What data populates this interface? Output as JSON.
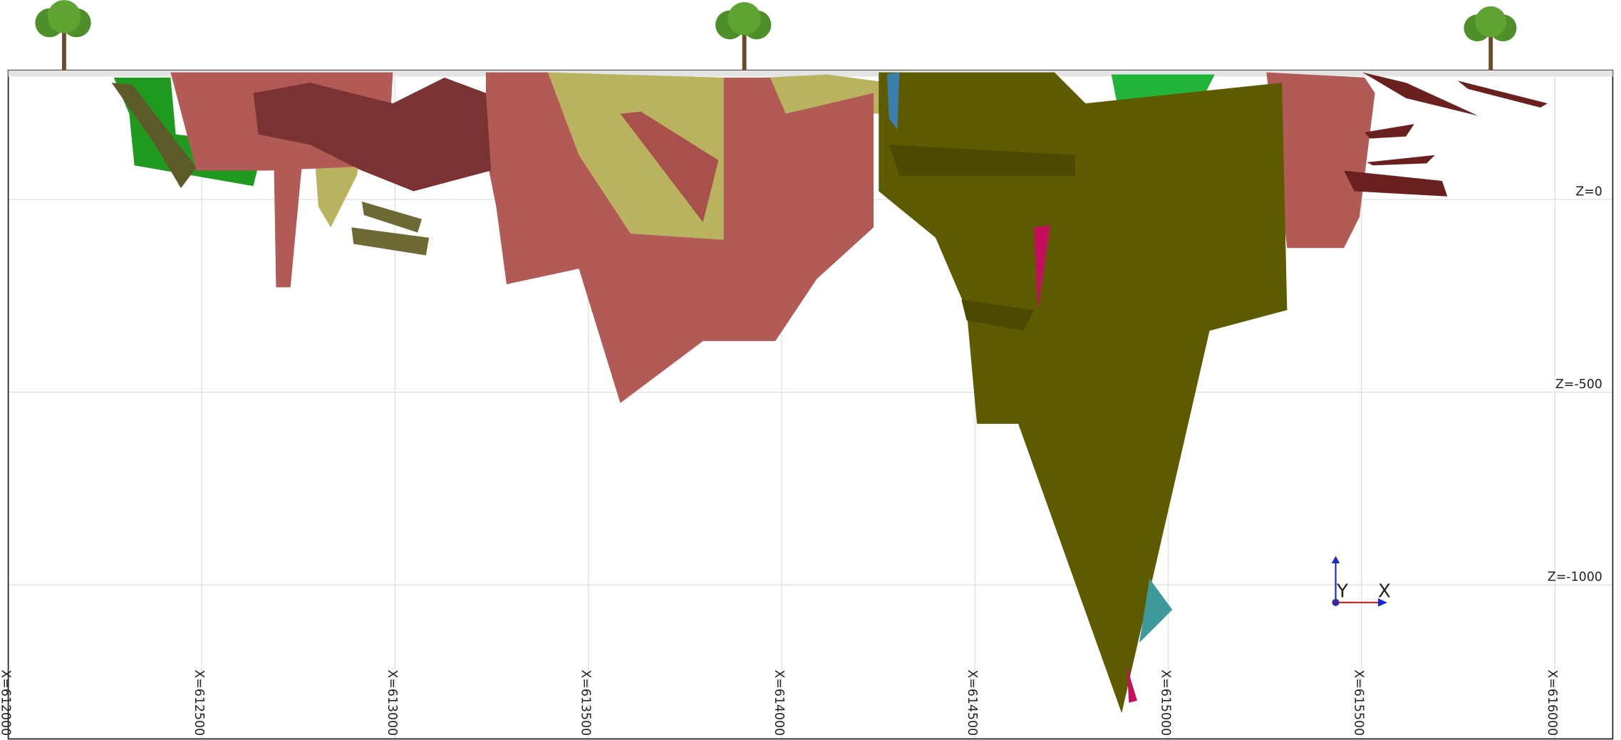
{
  "x_labels": [
    "X=612000",
    "X=612500",
    "X=613000",
    "X=613500",
    "X=614000",
    "X=614500",
    "X=615000",
    "X=615500",
    "X=616000"
  ],
  "z_labels": [
    "Z=0",
    "Z=-500",
    "Z=-1000"
  ],
  "gizmo": {
    "y_label": "Y",
    "x_label": "X"
  }
}
